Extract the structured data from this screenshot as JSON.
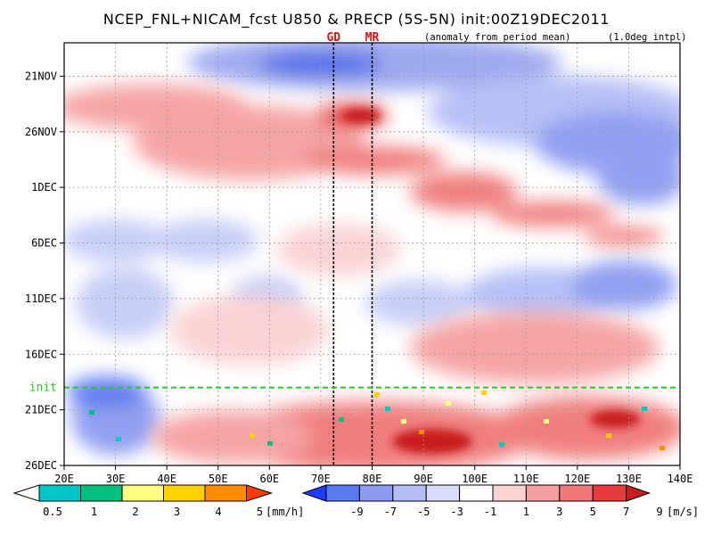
{
  "title": "NCEP_FNL+NICAM_fcst U850 & PRECP (5S-5N) init:00Z19DEC2011",
  "notes": {
    "anomaly": "(anomaly from period mean)",
    "interp": "(1.0deg intpl)"
  },
  "chart_data": {
    "type": "heatmap",
    "x_axis": {
      "range_lon": [
        20,
        140
      ],
      "tick_labels": [
        "20E",
        "30E",
        "40E",
        "50E",
        "60E",
        "70E",
        "80E",
        "90E",
        "100E",
        "110E",
        "120E",
        "130E",
        "140E"
      ],
      "tick_values": [
        20,
        30,
        40,
        50,
        60,
        70,
        80,
        90,
        100,
        110,
        120,
        130,
        140
      ]
    },
    "y_axis": {
      "direction": "time increasing downward",
      "range_dates": [
        "2011-11-18",
        "2011-12-26"
      ],
      "tick_labels": [
        "21NOV",
        "26NOV",
        "1DEC",
        "6DEC",
        "11DEC",
        "16DEC",
        "21DEC",
        "26DEC"
      ],
      "tick_dates": [
        "2011-11-21",
        "2011-11-26",
        "2011-12-01",
        "2011-12-06",
        "2011-12-11",
        "2011-12-16",
        "2011-12-21",
        "2011-12-26"
      ]
    },
    "grid": true,
    "markers": [
      {
        "label": "GD",
        "lon": 72.5
      },
      {
        "label": "MR",
        "lon": 80
      }
    ],
    "init_line": {
      "label": "init",
      "date": "2011-12-19",
      "color": "#22cc22"
    },
    "precip_colorbar": {
      "unit": "[mm/h]",
      "labels": [
        "0.5",
        "1",
        "2",
        "3",
        "4",
        "5"
      ],
      "colors": [
        "#00c8c8",
        "#00c080",
        "#ffff80",
        "#ffd200",
        "#ff8c00",
        "#ff3c00"
      ]
    },
    "u850_colorbar": {
      "unit": "[m/s]",
      "labels": [
        "-9",
        "-7",
        "-5",
        "-3",
        "-1",
        "1",
        "3",
        "5",
        "7",
        "9"
      ],
      "colors": [
        "#1e3cff",
        "#5a78f0",
        "#8c9bf0",
        "#b4bef5",
        "#d7dcfa",
        "#ffffff",
        "#fad2d2",
        "#f5a0a0",
        "#f07878",
        "#e63c3c",
        "#c81e1e"
      ]
    }
  }
}
